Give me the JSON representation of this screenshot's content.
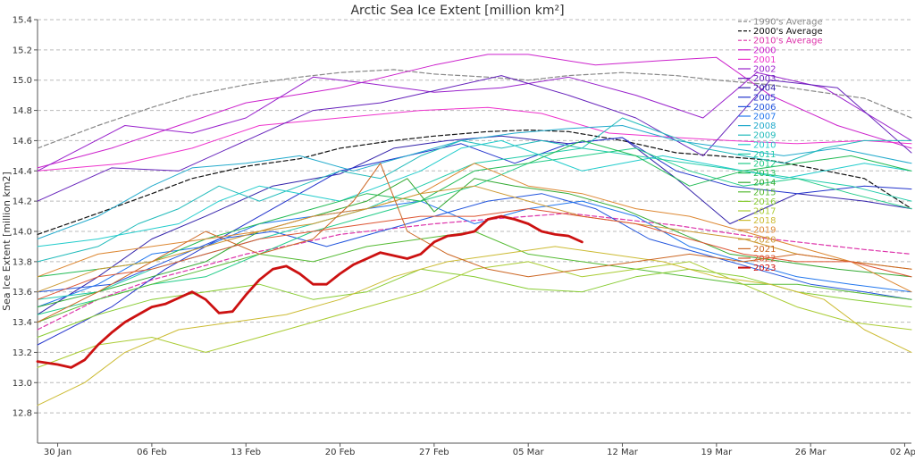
{
  "chart_data": {
    "type": "line",
    "title": "Arctic Sea Ice Extent [million km²]",
    "ylabel": "Sea Ice Extent [million km2]",
    "xlabel": "",
    "x_ticks": [
      "30 Jan",
      "06 Feb",
      "13 Feb",
      "20 Feb",
      "27 Feb",
      "05 Mar",
      "12 Mar",
      "19 Mar",
      "26 Mar",
      "02 Apr"
    ],
    "x_tick_values": [
      0,
      7,
      14,
      21,
      28,
      35,
      42,
      49,
      56,
      63
    ],
    "xlim": [
      -1.5,
      63.5
    ],
    "ylim": [
      12.6,
      15.4
    ],
    "y_ticks": [
      12.8,
      13.0,
      13.2,
      13.4,
      13.6,
      13.8,
      14.0,
      14.2,
      14.4,
      14.6,
      14.8,
      15.0,
      15.2,
      15.4
    ],
    "grid": true,
    "legend_position": "top-right",
    "series": [
      {
        "name": "1990's Average",
        "color": "#888888",
        "dash": true,
        "width": 1.2,
        "x": [
          -1.5,
          3,
          7,
          10,
          14,
          18,
          21,
          25,
          28,
          32,
          35,
          38,
          42,
          46,
          49,
          53,
          56,
          60,
          63.5
        ],
        "y": [
          14.55,
          14.7,
          14.82,
          14.9,
          14.97,
          15.02,
          15.05,
          15.07,
          15.04,
          15.02,
          15.0,
          15.03,
          15.05,
          15.03,
          15.0,
          14.97,
          14.93,
          14.88,
          14.75
        ]
      },
      {
        "name": "2000's Average",
        "color": "#111111",
        "dash": true,
        "width": 1.2,
        "x": [
          -1.5,
          3,
          7,
          10,
          14,
          18,
          21,
          25,
          28,
          32,
          35,
          38,
          42,
          46,
          49,
          53,
          56,
          60,
          63.5
        ],
        "y": [
          13.98,
          14.12,
          14.25,
          14.35,
          14.43,
          14.48,
          14.55,
          14.6,
          14.63,
          14.66,
          14.67,
          14.66,
          14.6,
          14.52,
          14.5,
          14.47,
          14.42,
          14.35,
          14.15
        ]
      },
      {
        "name": "2010's Average",
        "color": "#dd33aa",
        "dash": true,
        "width": 1.2,
        "x": [
          -1.5,
          3,
          7,
          10,
          14,
          18,
          21,
          25,
          28,
          32,
          35,
          38,
          42,
          46,
          49,
          53,
          56,
          60,
          63.5
        ],
        "y": [
          13.35,
          13.55,
          13.68,
          13.75,
          13.85,
          13.92,
          13.98,
          14.02,
          14.05,
          14.08,
          14.1,
          14.12,
          14.08,
          14.04,
          14.0,
          13.95,
          13.92,
          13.88,
          13.85
        ]
      },
      {
        "name": "2000",
        "color": "#cc22cc",
        "width": 1,
        "x": [
          -1.5,
          4,
          9,
          14,
          21,
          28,
          32,
          35,
          40,
          45,
          49,
          53,
          58,
          63.5
        ],
        "y": [
          14.42,
          14.55,
          14.7,
          14.85,
          14.95,
          15.1,
          15.17,
          15.17,
          15.1,
          15.13,
          15.15,
          14.9,
          14.7,
          14.55
        ]
      },
      {
        "name": "2001",
        "color": "#ee33cc",
        "width": 1,
        "x": [
          -1.5,
          5,
          10,
          15,
          21,
          27,
          32,
          36,
          41,
          46,
          50,
          55,
          60,
          63.5
        ],
        "y": [
          14.4,
          14.45,
          14.55,
          14.7,
          14.75,
          14.8,
          14.82,
          14.78,
          14.65,
          14.62,
          14.6,
          14.58,
          14.6,
          14.58
        ]
      },
      {
        "name": "2002",
        "color": "#9922cc",
        "width": 1,
        "x": [
          -1.5,
          5,
          10,
          14,
          19,
          23,
          28,
          33,
          38,
          43,
          48,
          52,
          57,
          63.5
        ],
        "y": [
          14.4,
          14.7,
          14.65,
          14.75,
          15.02,
          14.98,
          14.92,
          14.95,
          15.02,
          14.9,
          14.75,
          15.05,
          14.95,
          14.6
        ]
      },
      {
        "name": "2003",
        "color": "#6622bb",
        "width": 1,
        "x": [
          -1.5,
          4,
          9,
          14,
          19,
          24,
          29,
          33,
          38,
          43,
          48,
          53,
          58,
          63.5
        ],
        "y": [
          14.2,
          14.42,
          14.4,
          14.6,
          14.8,
          14.85,
          14.95,
          15.03,
          14.9,
          14.75,
          14.5,
          15.0,
          14.95,
          14.52
        ]
      },
      {
        "name": "2004",
        "color": "#3322aa",
        "width": 1,
        "x": [
          -1.5,
          3,
          7,
          11,
          16,
          21,
          25,
          29,
          33,
          38,
          42,
          46,
          50,
          55,
          60,
          63.5
        ],
        "y": [
          13.45,
          13.7,
          13.95,
          14.1,
          14.3,
          14.38,
          14.55,
          14.6,
          14.63,
          14.58,
          14.62,
          14.35,
          14.05,
          14.25,
          14.2,
          14.15
        ]
      },
      {
        "name": "2005",
        "color": "#2233cc",
        "width": 1,
        "x": [
          -1.5,
          4,
          8,
          12,
          17,
          21,
          26,
          30,
          34,
          38,
          42,
          46,
          50,
          55,
          60,
          63.5
        ],
        "y": [
          13.25,
          13.5,
          13.75,
          13.95,
          14.2,
          14.4,
          14.5,
          14.58,
          14.45,
          14.58,
          14.62,
          14.4,
          14.3,
          14.25,
          14.3,
          14.28
        ]
      },
      {
        "name": "2006",
        "color": "#2255dd",
        "width": 1,
        "x": [
          -1.5,
          4,
          8,
          12,
          16,
          20,
          24,
          28,
          32,
          36,
          40,
          44,
          48,
          52,
          56,
          60,
          63.5
        ],
        "y": [
          13.6,
          13.65,
          13.8,
          13.95,
          14.0,
          13.9,
          14.0,
          14.1,
          14.2,
          14.25,
          14.15,
          13.95,
          13.85,
          13.75,
          13.65,
          13.6,
          13.55
        ]
      },
      {
        "name": "2007",
        "color": "#2277ee",
        "width": 1,
        "x": [
          -1.5,
          3,
          7,
          11,
          15,
          19,
          23,
          27,
          31,
          35,
          39,
          43,
          47,
          51,
          55,
          59,
          63.5
        ],
        "y": [
          13.5,
          13.65,
          13.85,
          13.9,
          14.05,
          14.1,
          14.15,
          14.2,
          14.05,
          14.15,
          14.2,
          14.1,
          13.9,
          13.8,
          13.7,
          13.65,
          13.6
        ]
      },
      {
        "name": "2008",
        "color": "#22aacc",
        "width": 1,
        "x": [
          -1.5,
          3,
          7,
          10,
          14,
          18,
          22,
          26,
          30,
          34,
          38,
          42,
          46,
          50,
          54,
          58,
          63.5
        ],
        "y": [
          13.95,
          14.1,
          14.3,
          14.42,
          14.45,
          14.5,
          14.4,
          14.5,
          14.6,
          14.65,
          14.68,
          14.7,
          14.6,
          14.55,
          14.5,
          14.55,
          14.45
        ]
      },
      {
        "name": "2009",
        "color": "#22bbbb",
        "width": 1,
        "x": [
          -1.5,
          3,
          6,
          9,
          12,
          15,
          18,
          21,
          24,
          27,
          30,
          33,
          36,
          39,
          42,
          45,
          48,
          51,
          54,
          57,
          60,
          63.5
        ],
        "y": [
          13.8,
          13.9,
          14.05,
          14.15,
          14.3,
          14.2,
          14.3,
          14.4,
          14.35,
          14.5,
          14.6,
          14.55,
          14.6,
          14.55,
          14.75,
          14.65,
          14.55,
          14.5,
          14.45,
          14.55,
          14.6,
          14.6
        ]
      },
      {
        "name": "2010",
        "color": "#22cccc",
        "width": 1,
        "x": [
          -1.5,
          3,
          6,
          9,
          12,
          15,
          18,
          21,
          24,
          27,
          30,
          33,
          36,
          39,
          42,
          45,
          48,
          51,
          54,
          57,
          60,
          63.5
        ],
        "y": [
          13.9,
          13.95,
          14.0,
          14.05,
          14.2,
          14.3,
          14.25,
          14.2,
          14.3,
          14.4,
          14.55,
          14.6,
          14.5,
          14.4,
          14.45,
          14.5,
          14.45,
          14.4,
          14.35,
          14.4,
          14.45,
          14.4
        ]
      },
      {
        "name": "2011",
        "color": "#22ccaa",
        "width": 1,
        "x": [
          -1.5,
          3,
          7,
          11,
          15,
          19,
          23,
          27,
          31,
          35,
          39,
          43,
          47,
          51,
          55,
          59,
          63.5
        ],
        "y": [
          13.55,
          13.6,
          13.75,
          13.85,
          13.95,
          14.05,
          14.15,
          14.3,
          14.45,
          14.5,
          14.55,
          14.5,
          14.45,
          14.4,
          14.35,
          14.3,
          14.2
        ]
      },
      {
        "name": "2012",
        "color": "#22cc88",
        "width": 1,
        "x": [
          -1.5,
          3,
          7,
          11,
          15,
          19,
          23,
          27,
          31,
          35,
          39,
          43,
          47,
          51,
          55,
          59,
          63.5
        ],
        "y": [
          13.45,
          13.55,
          13.65,
          13.7,
          13.85,
          14.0,
          14.1,
          14.2,
          14.3,
          14.45,
          14.5,
          14.55,
          14.4,
          14.3,
          14.35,
          14.25,
          14.15
        ]
      },
      {
        "name": "2013",
        "color": "#22bb55",
        "width": 1,
        "x": [
          -1.5,
          3,
          7,
          11,
          15,
          19,
          23,
          27,
          31,
          35,
          39,
          43,
          47,
          51,
          55,
          59,
          63.5
        ],
        "y": [
          13.7,
          13.75,
          13.8,
          13.95,
          14.05,
          14.15,
          14.25,
          14.2,
          14.4,
          14.45,
          14.6,
          14.5,
          14.3,
          14.4,
          14.45,
          14.5,
          14.4
        ]
      },
      {
        "name": "2014",
        "color": "#33aa33",
        "width": 1,
        "x": [
          -1.5,
          3,
          7,
          11,
          15,
          19,
          23,
          26,
          28,
          31,
          34,
          38,
          42,
          46,
          50,
          54,
          58,
          63.5
        ],
        "y": [
          13.5,
          13.6,
          13.7,
          13.8,
          14.0,
          14.1,
          14.2,
          14.35,
          14.13,
          14.35,
          14.3,
          14.25,
          14.15,
          14.0,
          13.85,
          13.8,
          13.75,
          13.7
        ]
      },
      {
        "name": "2015",
        "color": "#55bb33",
        "width": 1,
        "x": [
          -1.5,
          3,
          7,
          11,
          15,
          19,
          23,
          27,
          31,
          35,
          39,
          43,
          47,
          51,
          55,
          59,
          63.5
        ],
        "y": [
          13.4,
          13.55,
          13.65,
          13.75,
          13.85,
          13.8,
          13.9,
          13.95,
          14.0,
          13.85,
          13.8,
          13.75,
          13.7,
          13.65,
          13.65,
          13.6,
          13.55
        ]
      },
      {
        "name": "2016",
        "color": "#88cc33",
        "width": 1,
        "x": [
          -1.5,
          3,
          7,
          11,
          15,
          19,
          23,
          27,
          31,
          35,
          39,
          43,
          47,
          51,
          55,
          59,
          63.5
        ],
        "y": [
          13.3,
          13.45,
          13.55,
          13.6,
          13.65,
          13.55,
          13.6,
          13.75,
          13.7,
          13.62,
          13.6,
          13.7,
          13.75,
          13.7,
          13.6,
          13.55,
          13.5
        ]
      },
      {
        "name": "2017",
        "color": "#aacc33",
        "width": 1,
        "x": [
          -1.5,
          3,
          7,
          11,
          15,
          19,
          23,
          27,
          31,
          35,
          39,
          43,
          47,
          51,
          55,
          59,
          63.5
        ],
        "y": [
          13.1,
          13.25,
          13.3,
          13.2,
          13.3,
          13.4,
          13.5,
          13.6,
          13.75,
          13.8,
          13.7,
          13.75,
          13.8,
          13.65,
          13.5,
          13.4,
          13.35
        ]
      },
      {
        "name": "2018",
        "color": "#ccbb33",
        "width": 1,
        "x": [
          -1.5,
          2,
          5,
          9,
          13,
          17,
          21,
          25,
          29,
          33,
          37,
          41,
          45,
          49,
          53,
          57,
          60,
          63.5
        ],
        "y": [
          12.85,
          13.0,
          13.2,
          13.35,
          13.4,
          13.45,
          13.55,
          13.7,
          13.8,
          13.85,
          13.9,
          13.85,
          13.8,
          13.7,
          13.65,
          13.55,
          13.35,
          13.2
        ]
      },
      {
        "name": "2019",
        "color": "#dd8833",
        "width": 1,
        "x": [
          -1.5,
          3,
          7,
          11,
          15,
          19,
          23,
          27,
          31,
          35,
          39,
          43,
          47,
          51,
          55,
          59,
          63.5
        ],
        "y": [
          13.7,
          13.85,
          13.9,
          13.95,
          14.0,
          14.1,
          14.15,
          14.25,
          14.45,
          14.3,
          14.25,
          14.15,
          14.1,
          14.0,
          13.9,
          13.8,
          13.6
        ]
      },
      {
        "name": "2020",
        "color": "#cc9933",
        "width": 1,
        "x": [
          -1.5,
          3,
          7,
          11,
          15,
          19,
          23,
          27,
          31,
          35,
          39,
          43,
          47,
          51,
          55,
          59,
          63.5
        ],
        "y": [
          13.6,
          13.75,
          13.8,
          13.9,
          14.0,
          14.05,
          14.15,
          14.25,
          14.3,
          14.2,
          14.1,
          14.05,
          14.0,
          13.95,
          13.85,
          13.8,
          13.75
        ]
      },
      {
        "name": "2021",
        "color": "#cc6622",
        "width": 1,
        "x": [
          -1.5,
          3,
          7,
          11,
          15,
          19,
          22,
          24,
          26,
          29,
          32,
          35,
          39,
          43,
          47,
          51,
          55,
          59,
          63.5
        ],
        "y": [
          13.4,
          13.6,
          13.8,
          14.0,
          13.85,
          13.95,
          14.2,
          14.45,
          14.0,
          13.85,
          13.75,
          13.7,
          13.75,
          13.8,
          13.85,
          13.8,
          13.85,
          13.8,
          13.75
        ]
      },
      {
        "name": "2022",
        "color": "#dd5533",
        "width": 1,
        "x": [
          -1.5,
          3,
          7,
          11,
          15,
          19,
          23,
          27,
          31,
          35,
          39,
          43,
          47,
          51,
          55,
          59,
          63.5
        ],
        "y": [
          13.55,
          13.7,
          13.75,
          13.85,
          13.95,
          14.0,
          14.05,
          14.1,
          14.1,
          14.15,
          14.1,
          14.05,
          13.95,
          13.85,
          13.8,
          13.8,
          13.7
        ]
      },
      {
        "name": "2023",
        "color": "#cc1111",
        "width": 2.8,
        "x": [
          -1.5,
          0,
          1,
          2,
          3,
          4,
          5,
          6,
          7,
          8,
          9,
          10,
          11,
          12,
          13,
          14,
          15,
          16,
          17,
          18,
          19,
          20,
          21,
          22,
          23,
          24,
          25,
          26,
          27,
          28,
          29,
          30,
          31,
          32,
          33,
          34,
          35,
          36,
          37,
          38,
          39
        ],
        "y": [
          13.14,
          13.12,
          13.1,
          13.15,
          13.25,
          13.33,
          13.4,
          13.45,
          13.5,
          13.52,
          13.56,
          13.6,
          13.55,
          13.46,
          13.47,
          13.58,
          13.68,
          13.75,
          13.77,
          13.72,
          13.65,
          13.65,
          13.72,
          13.78,
          13.82,
          13.86,
          13.84,
          13.82,
          13.85,
          13.93,
          13.97,
          13.98,
          14.0,
          14.08,
          14.1,
          14.08,
          14.05,
          14.0,
          13.98,
          13.97,
          13.93
        ]
      }
    ]
  }
}
